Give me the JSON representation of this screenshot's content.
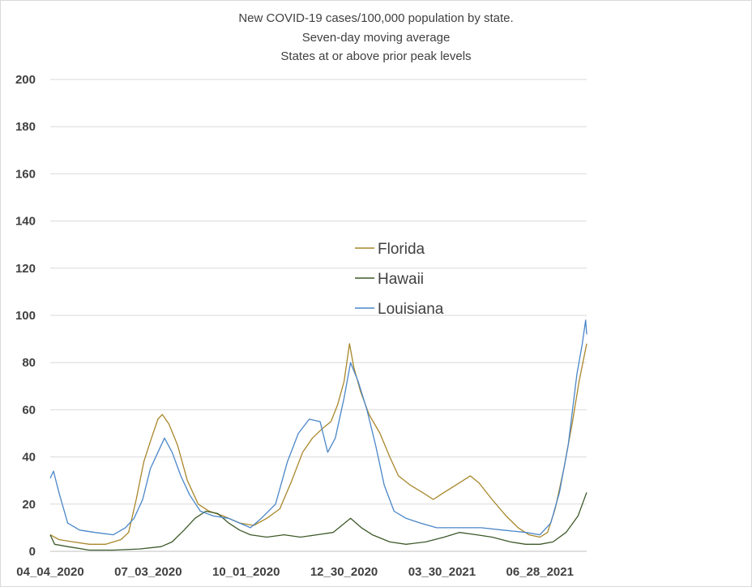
{
  "chart_data": {
    "type": "line",
    "title": [
      "New COVID-19 cases/100,000 population by state.",
      "Seven-day moving average",
      "States at or above prior peak levels"
    ],
    "xlabel": "",
    "ylabel": "",
    "ylim": [
      0,
      200
    ],
    "yticks": [
      0,
      20,
      40,
      60,
      80,
      100,
      120,
      140,
      160,
      180,
      200
    ],
    "xlim": [
      "2020-04-04",
      "2021-08-10"
    ],
    "xtick_labels": [
      "04_04_2020",
      "07_03_2020",
      "10_01_2020",
      "12_30_2020",
      "03_30_2021",
      "06_28_2021"
    ],
    "grid": true,
    "legend_position": "center",
    "series": [
      {
        "name": "Florida",
        "color": "#a8862a",
        "points": [
          [
            "2020-04-04",
            7
          ],
          [
            "2020-04-12",
            5
          ],
          [
            "2020-04-25",
            4
          ],
          [
            "2020-05-10",
            3
          ],
          [
            "2020-05-25",
            3
          ],
          [
            "2020-06-08",
            5
          ],
          [
            "2020-06-15",
            8
          ],
          [
            "2020-06-22",
            22
          ],
          [
            "2020-06-29",
            38
          ],
          [
            "2020-07-06",
            48
          ],
          [
            "2020-07-12",
            56
          ],
          [
            "2020-07-16",
            58
          ],
          [
            "2020-07-22",
            54
          ],
          [
            "2020-07-30",
            45
          ],
          [
            "2020-08-08",
            30
          ],
          [
            "2020-08-18",
            20
          ],
          [
            "2020-08-28",
            17
          ],
          [
            "2020-09-10",
            15
          ],
          [
            "2020-09-25",
            12
          ],
          [
            "2020-10-08",
            11
          ],
          [
            "2020-10-20",
            14
          ],
          [
            "2020-11-01",
            18
          ],
          [
            "2020-11-12",
            30
          ],
          [
            "2020-11-22",
            42
          ],
          [
            "2020-12-01",
            48
          ],
          [
            "2020-12-10",
            52
          ],
          [
            "2020-12-18",
            55
          ],
          [
            "2020-12-24",
            62
          ],
          [
            "2020-12-30",
            72
          ],
          [
            "2021-01-04",
            88
          ],
          [
            "2021-01-08",
            78
          ],
          [
            "2021-01-14",
            68
          ],
          [
            "2021-01-22",
            58
          ],
          [
            "2021-02-01",
            50
          ],
          [
            "2021-02-10",
            40
          ],
          [
            "2021-02-18",
            32
          ],
          [
            "2021-03-01",
            28
          ],
          [
            "2021-03-12",
            25
          ],
          [
            "2021-03-22",
            22
          ],
          [
            "2021-04-01",
            25
          ],
          [
            "2021-04-15",
            29
          ],
          [
            "2021-04-25",
            32
          ],
          [
            "2021-05-03",
            29
          ],
          [
            "2021-05-15",
            22
          ],
          [
            "2021-05-28",
            15
          ],
          [
            "2021-06-08",
            10
          ],
          [
            "2021-06-18",
            7
          ],
          [
            "2021-06-28",
            6
          ],
          [
            "2021-07-05",
            8
          ],
          [
            "2021-07-12",
            18
          ],
          [
            "2021-07-20",
            35
          ],
          [
            "2021-07-28",
            55
          ],
          [
            "2021-08-03",
            72
          ],
          [
            "2021-08-10",
            88
          ]
        ]
      },
      {
        "name": "Hawaii",
        "color": "#3d5a2a",
        "points": [
          [
            "2020-04-04",
            7
          ],
          [
            "2020-04-08",
            3
          ],
          [
            "2020-04-20",
            2
          ],
          [
            "2020-05-10",
            0.5
          ],
          [
            "2020-06-01",
            0.5
          ],
          [
            "2020-06-25",
            1
          ],
          [
            "2020-07-15",
            2
          ],
          [
            "2020-07-25",
            4
          ],
          [
            "2020-08-05",
            9
          ],
          [
            "2020-08-15",
            14
          ],
          [
            "2020-08-25",
            17
          ],
          [
            "2020-09-05",
            16
          ],
          [
            "2020-09-15",
            12
          ],
          [
            "2020-09-25",
            9
          ],
          [
            "2020-10-05",
            7
          ],
          [
            "2020-10-20",
            6
          ],
          [
            "2020-11-05",
            7
          ],
          [
            "2020-11-20",
            6
          ],
          [
            "2020-12-05",
            7
          ],
          [
            "2020-12-20",
            8
          ],
          [
            "2021-01-05",
            14
          ],
          [
            "2021-01-15",
            10
          ],
          [
            "2021-01-25",
            7
          ],
          [
            "2021-02-10",
            4
          ],
          [
            "2021-02-25",
            3
          ],
          [
            "2021-03-15",
            4
          ],
          [
            "2021-04-01",
            6
          ],
          [
            "2021-04-15",
            8
          ],
          [
            "2021-05-01",
            7
          ],
          [
            "2021-05-15",
            6
          ],
          [
            "2021-06-01",
            4
          ],
          [
            "2021-06-15",
            3
          ],
          [
            "2021-06-28",
            3
          ],
          [
            "2021-07-10",
            4
          ],
          [
            "2021-07-22",
            8
          ],
          [
            "2021-08-02",
            15
          ],
          [
            "2021-08-10",
            25
          ]
        ]
      },
      {
        "name": "Louisiana",
        "color": "#4a86c8",
        "points": [
          [
            "2020-04-04",
            31
          ],
          [
            "2020-04-07",
            34
          ],
          [
            "2020-04-12",
            25
          ],
          [
            "2020-04-20",
            12
          ],
          [
            "2020-05-01",
            9
          ],
          [
            "2020-05-15",
            8
          ],
          [
            "2020-06-01",
            7
          ],
          [
            "2020-06-12",
            10
          ],
          [
            "2020-06-20",
            14
          ],
          [
            "2020-06-28",
            22
          ],
          [
            "2020-07-05",
            35
          ],
          [
            "2020-07-12",
            42
          ],
          [
            "2020-07-18",
            48
          ],
          [
            "2020-07-25",
            42
          ],
          [
            "2020-08-02",
            32
          ],
          [
            "2020-08-10",
            24
          ],
          [
            "2020-08-20",
            17
          ],
          [
            "2020-09-01",
            15
          ],
          [
            "2020-09-15",
            14
          ],
          [
            "2020-09-25",
            12
          ],
          [
            "2020-10-05",
            10
          ],
          [
            "2020-10-15",
            14
          ],
          [
            "2020-10-28",
            20
          ],
          [
            "2020-11-08",
            38
          ],
          [
            "2020-11-18",
            50
          ],
          [
            "2020-11-28",
            56
          ],
          [
            "2020-12-08",
            55
          ],
          [
            "2020-12-15",
            42
          ],
          [
            "2020-12-22",
            48
          ],
          [
            "2020-12-30",
            65
          ],
          [
            "2021-01-05",
            80
          ],
          [
            "2021-01-12",
            72
          ],
          [
            "2021-01-20",
            60
          ],
          [
            "2021-01-28",
            45
          ],
          [
            "2021-02-05",
            28
          ],
          [
            "2021-02-14",
            17
          ],
          [
            "2021-02-25",
            14
          ],
          [
            "2021-03-10",
            12
          ],
          [
            "2021-03-25",
            10
          ],
          [
            "2021-04-15",
            10
          ],
          [
            "2021-05-05",
            10
          ],
          [
            "2021-05-25",
            9
          ],
          [
            "2021-06-15",
            8
          ],
          [
            "2021-06-28",
            7
          ],
          [
            "2021-07-08",
            12
          ],
          [
            "2021-07-16",
            25
          ],
          [
            "2021-07-24",
            45
          ],
          [
            "2021-08-01",
            75
          ],
          [
            "2021-08-06",
            88
          ],
          [
            "2021-08-09",
            98
          ],
          [
            "2021-08-10",
            92
          ]
        ]
      }
    ]
  }
}
